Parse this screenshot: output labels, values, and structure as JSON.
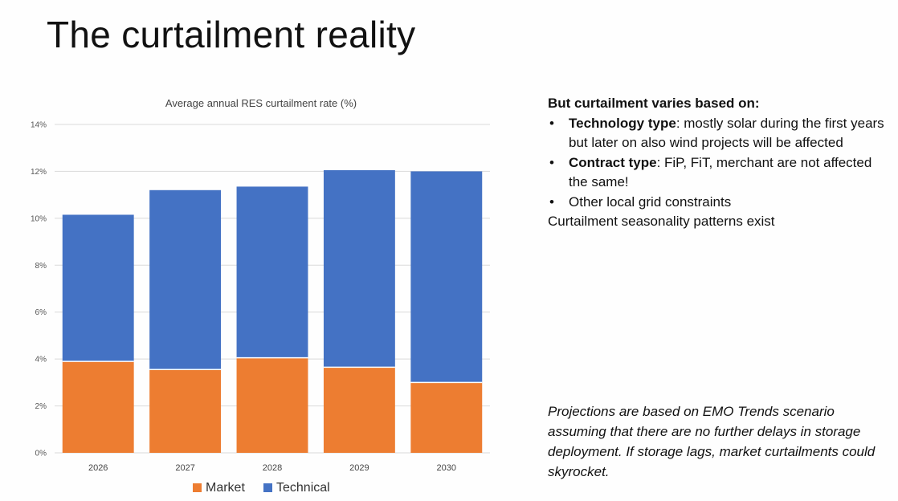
{
  "slide": {
    "title": "The curtailment reality"
  },
  "colors": {
    "market": "#ED7D31",
    "technical": "#4472C4",
    "grid": "#d9d9d9"
  },
  "chart_data": {
    "type": "bar",
    "stacked": true,
    "title": "Average annual RES curtailment rate (%)",
    "categories": [
      "2026",
      "2027",
      "2028",
      "2029",
      "2030"
    ],
    "series": [
      {
        "name": "Market",
        "values": [
          3.9,
          3.55,
          4.05,
          3.65,
          3.0
        ]
      },
      {
        "name": "Technical",
        "values": [
          6.25,
          7.65,
          7.3,
          8.4,
          9.0
        ]
      }
    ],
    "ylim": [
      0,
      14
    ],
    "yticks": [
      0,
      2,
      4,
      6,
      8,
      10,
      12,
      14
    ],
    "ytick_suffix": "%",
    "grid": true,
    "legend": "bottom"
  },
  "bullets": {
    "heading": "But curtailment varies based on:",
    "items": [
      {
        "bold": "Technology type",
        "text": ": mostly solar during the first years but later on also wind projects will be affected"
      },
      {
        "bold": "Contract type",
        "text": ": FiP, FiT, merchant are not affected the same!"
      },
      {
        "bold": "",
        "text": "Other local grid constraints"
      }
    ],
    "footer": "Curtailment seasonality patterns exist"
  },
  "note": "Projections are based on EMO Trends scenario assuming that there are no further delays in storage deployment. If storage lags, market curtailments could skyrocket."
}
